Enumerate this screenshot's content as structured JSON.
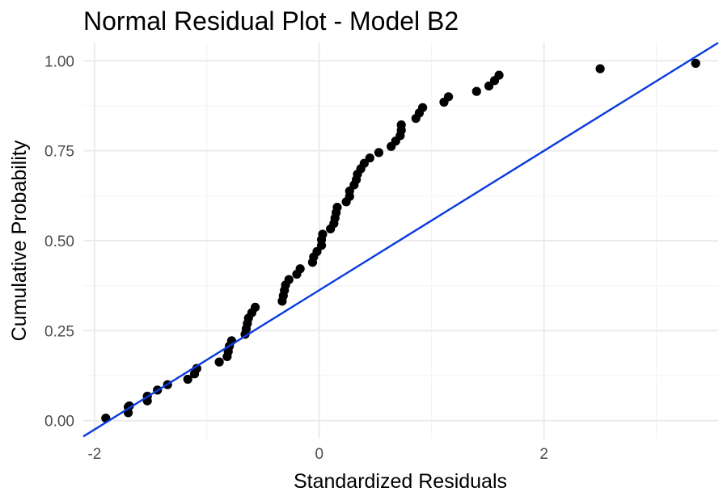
{
  "chart_data": {
    "type": "scatter",
    "title": "Normal Residual Plot - Model B2",
    "xlabel": "Standardized Residuals",
    "ylabel": "Cumulative Probability",
    "xlim": [
      -2.1,
      3.55
    ],
    "ylim": [
      -0.05,
      1.05
    ],
    "x_ticks": [
      -2,
      0,
      2
    ],
    "x_tick_labels": [
      "-2",
      "0",
      "2"
    ],
    "y_ticks": [
      0,
      0.25,
      0.5,
      0.75,
      1
    ],
    "y_tick_labels": [
      "0.00",
      "0.25",
      "0.50",
      "0.75",
      "1.00"
    ],
    "grid": true,
    "point_color": "#000000",
    "line_color": "#0a3be0",
    "reference_line": {
      "x": [
        -2.1,
        3.55
      ],
      "y": [
        -0.044,
        1.05
      ]
    },
    "points": [
      [
        -1.9,
        0.007
      ],
      [
        -1.7,
        0.022
      ],
      [
        -1.7,
        0.038
      ],
      [
        -1.69,
        0.041
      ],
      [
        -1.53,
        0.055
      ],
      [
        -1.53,
        0.068
      ],
      [
        -1.44,
        0.085
      ],
      [
        -1.35,
        0.1
      ],
      [
        -1.17,
        0.115
      ],
      [
        -1.11,
        0.13
      ],
      [
        -1.09,
        0.145
      ],
      [
        -0.89,
        0.163
      ],
      [
        -0.82,
        0.178
      ],
      [
        -0.81,
        0.192
      ],
      [
        -0.8,
        0.207
      ],
      [
        -0.78,
        0.222
      ],
      [
        -0.66,
        0.24
      ],
      [
        -0.65,
        0.255
      ],
      [
        -0.64,
        0.27
      ],
      [
        -0.63,
        0.285
      ],
      [
        -0.6,
        0.3
      ],
      [
        -0.57,
        0.315
      ],
      [
        -0.33,
        0.332
      ],
      [
        -0.32,
        0.347
      ],
      [
        -0.31,
        0.362
      ],
      [
        -0.3,
        0.377
      ],
      [
        -0.27,
        0.392
      ],
      [
        -0.2,
        0.407
      ],
      [
        -0.17,
        0.422
      ],
      [
        -0.06,
        0.44
      ],
      [
        -0.05,
        0.455
      ],
      [
        -0.02,
        0.47
      ],
      [
        0.02,
        0.487
      ],
      [
        0.02,
        0.503
      ],
      [
        0.03,
        0.518
      ],
      [
        0.1,
        0.533
      ],
      [
        0.13,
        0.548
      ],
      [
        0.14,
        0.563
      ],
      [
        0.15,
        0.578
      ],
      [
        0.16,
        0.593
      ],
      [
        0.24,
        0.608
      ],
      [
        0.27,
        0.623
      ],
      [
        0.27,
        0.638
      ],
      [
        0.31,
        0.655
      ],
      [
        0.33,
        0.67
      ],
      [
        0.34,
        0.685
      ],
      [
        0.37,
        0.7
      ],
      [
        0.4,
        0.715
      ],
      [
        0.45,
        0.73
      ],
      [
        0.53,
        0.745
      ],
      [
        0.64,
        0.762
      ],
      [
        0.68,
        0.777
      ],
      [
        0.72,
        0.792
      ],
      [
        0.73,
        0.807
      ],
      [
        0.73,
        0.822
      ],
      [
        0.86,
        0.84
      ],
      [
        0.89,
        0.855
      ],
      [
        0.92,
        0.87
      ],
      [
        1.11,
        0.885
      ],
      [
        1.15,
        0.9
      ],
      [
        1.4,
        0.915
      ],
      [
        1.51,
        0.93
      ],
      [
        1.56,
        0.945
      ],
      [
        1.6,
        0.96
      ],
      [
        2.5,
        0.978
      ],
      [
        3.35,
        0.993
      ]
    ]
  }
}
